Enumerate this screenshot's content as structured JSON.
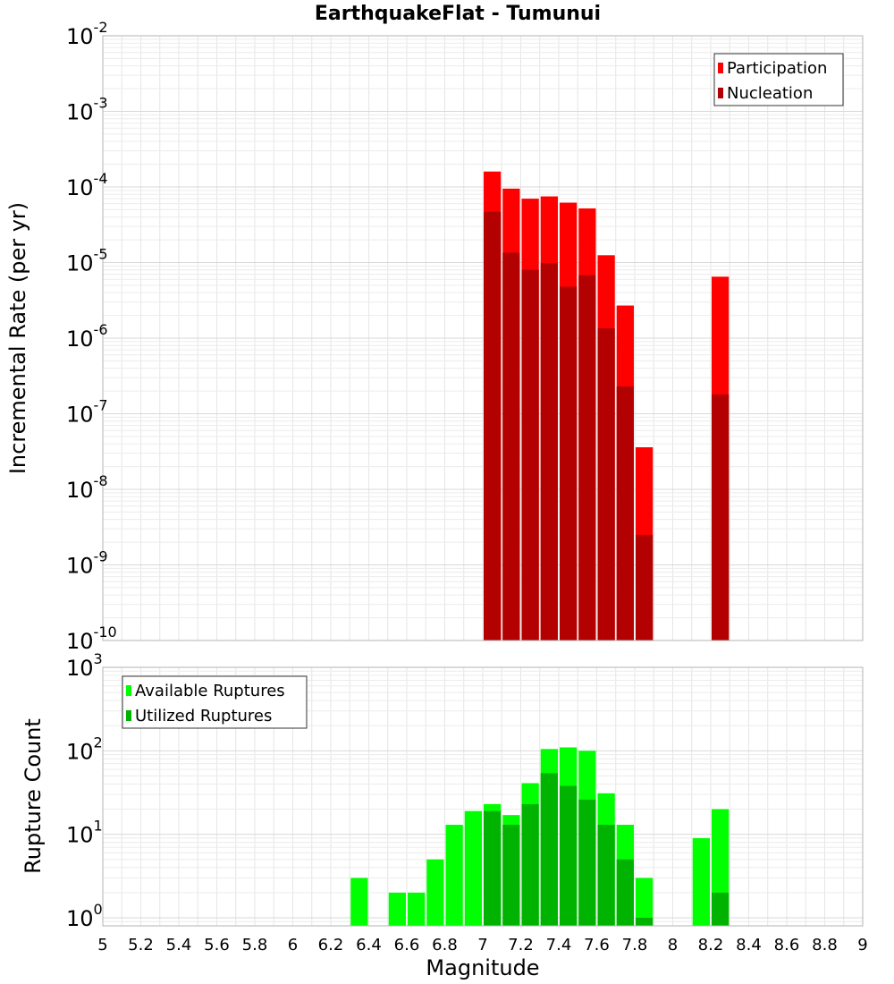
{
  "chart_data": [
    {
      "type": "bar",
      "title": "EarthquakeFlat - Tumunui",
      "xlabel": "Magnitude",
      "ylabel": "Incremental Rate (per yr)",
      "yscale": "log",
      "ylim": [
        1e-10,
        0.01
      ],
      "xlim": [
        5,
        9
      ],
      "bar_width": 0.1,
      "grid": true,
      "legend_position": "top-right",
      "y_tick_exponents": [
        "-10",
        "-9",
        "-8",
        "-7",
        "-6",
        "-5",
        "-4",
        "-3",
        "-2"
      ],
      "series": [
        {
          "name": "Participation",
          "color": "#ff0000",
          "points": [
            [
              7.05,
              0.00016
            ],
            [
              7.15,
              9.5e-05
            ],
            [
              7.25,
              7e-05
            ],
            [
              7.35,
              7.5e-05
            ],
            [
              7.45,
              6.2e-05
            ],
            [
              7.55,
              5.2e-05
            ],
            [
              7.65,
              1.25e-05
            ],
            [
              7.75,
              2.7e-06
            ],
            [
              7.85,
              3.6e-08
            ],
            [
              8.25,
              6.5e-06
            ]
          ]
        },
        {
          "name": "Nucleation",
          "color": "#b30000",
          "points": [
            [
              7.05,
              4.7e-05
            ],
            [
              7.15,
              1.35e-05
            ],
            [
              7.25,
              8e-06
            ],
            [
              7.35,
              9.8e-06
            ],
            [
              7.45,
              4.8e-06
            ],
            [
              7.55,
              6.8e-06
            ],
            [
              7.65,
              1.35e-06
            ],
            [
              7.75,
              2.3e-07
            ],
            [
              7.85,
              2.5e-09
            ],
            [
              8.25,
              1.8e-07
            ]
          ]
        }
      ]
    },
    {
      "type": "bar",
      "title": "",
      "xlabel": "Magnitude",
      "ylabel": "Rupture Count",
      "yscale": "log",
      "ylim": [
        0.8,
        1000
      ],
      "xlim": [
        5,
        9
      ],
      "bar_width": 0.1,
      "grid": true,
      "legend_position": "top-left",
      "y_tick_exponents": [
        "0",
        "1",
        "2",
        "3"
      ],
      "x_ticks": [
        "5",
        "5.2",
        "5.4",
        "5.6",
        "5.8",
        "6",
        "6.2",
        "6.4",
        "6.6",
        "6.8",
        "7",
        "7.2",
        "7.4",
        "7.6",
        "7.8",
        "8",
        "8.2",
        "8.4",
        "8.6",
        "8.8",
        "9"
      ],
      "series": [
        {
          "name": "Available Ruptures",
          "color": "#00ff00",
          "points": [
            [
              6.35,
              3
            ],
            [
              6.55,
              2
            ],
            [
              6.65,
              2
            ],
            [
              6.75,
              5
            ],
            [
              6.85,
              13
            ],
            [
              6.95,
              19
            ],
            [
              7.05,
              23
            ],
            [
              7.15,
              17
            ],
            [
              7.25,
              41
            ],
            [
              7.35,
              105
            ],
            [
              7.45,
              110
            ],
            [
              7.55,
              100
            ],
            [
              7.65,
              31
            ],
            [
              7.75,
              13
            ],
            [
              7.85,
              3
            ],
            [
              8.15,
              9
            ],
            [
              8.25,
              20
            ]
          ]
        },
        {
          "name": "Utilized Ruptures",
          "color": "#00b300",
          "points": [
            [
              7.05,
              19
            ],
            [
              7.15,
              13
            ],
            [
              7.25,
              23
            ],
            [
              7.35,
              54
            ],
            [
              7.45,
              38
            ],
            [
              7.55,
              26
            ],
            [
              7.65,
              13
            ],
            [
              7.75,
              5
            ],
            [
              7.85,
              1
            ],
            [
              8.25,
              2
            ]
          ]
        }
      ]
    }
  ]
}
